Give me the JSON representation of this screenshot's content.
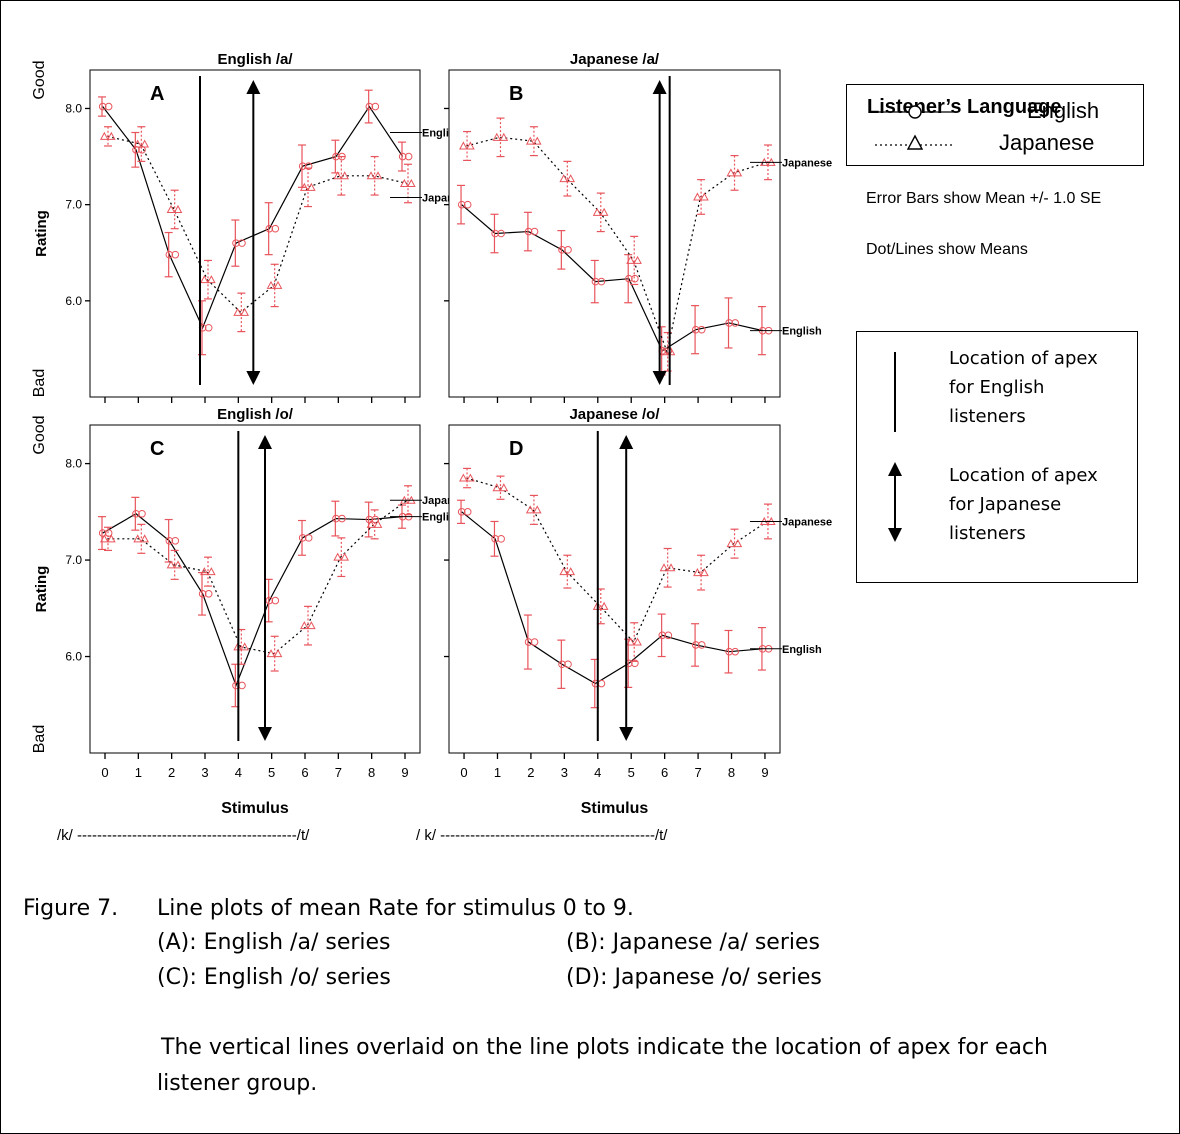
{
  "chart_data": [
    {
      "panel_letter": "A",
      "title": "English /a/",
      "type": "line",
      "x": [
        0,
        1,
        2,
        3,
        4,
        5,
        6,
        7,
        8,
        9
      ],
      "ylabel": "Rating",
      "ylim_top": "Good",
      "ylim_bottom": "Bad",
      "y_ticks": [
        "8.0",
        "7.0",
        "6.0"
      ],
      "y_tick_values": [
        8.0,
        7.0,
        6.0
      ],
      "ylim": [
        5.0,
        8.4
      ],
      "series": [
        {
          "name": "English",
          "values": [
            8.02,
            7.57,
            6.48,
            5.72,
            6.6,
            6.75,
            7.4,
            7.5,
            8.02,
            7.5
          ],
          "se": [
            0.1,
            0.18,
            0.23,
            0.28,
            0.24,
            0.27,
            0.22,
            0.17,
            0.17,
            0.15
          ]
        },
        {
          "name": "Japanese",
          "values": [
            7.71,
            7.63,
            6.95,
            6.22,
            5.88,
            6.16,
            7.18,
            7.3,
            7.3,
            7.22
          ],
          "se": [
            0.1,
            0.18,
            0.2,
            0.2,
            0.2,
            0.22,
            0.2,
            0.2,
            0.2,
            0.2
          ]
        }
      ],
      "apex_english": 2.85,
      "apex_japanese": 4.45,
      "end_label_english": "English",
      "end_label_japanese": "Japanese",
      "show_x_labels": false
    },
    {
      "panel_letter": "B",
      "title": "Japanese /a/",
      "type": "line",
      "x": [
        0,
        1,
        2,
        3,
        4,
        5,
        6,
        7,
        8,
        9
      ],
      "ylabel": "",
      "ylim": [
        5.0,
        8.4
      ],
      "series": [
        {
          "name": "English",
          "values": [
            7.0,
            6.7,
            6.72,
            6.53,
            6.2,
            6.23,
            5.48,
            5.7,
            5.77,
            5.69
          ],
          "se": [
            0.2,
            0.2,
            0.2,
            0.2,
            0.22,
            0.25,
            0.25,
            0.25,
            0.26,
            0.25
          ]
        },
        {
          "name": "Japanese",
          "values": [
            7.61,
            7.7,
            7.66,
            7.27,
            6.92,
            6.42,
            5.47,
            7.08,
            7.33,
            7.44
          ],
          "se": [
            0.15,
            0.2,
            0.15,
            0.18,
            0.2,
            0.25,
            0.2,
            0.18,
            0.18,
            0.18
          ]
        }
      ],
      "apex_english": 6.15,
      "apex_japanese": 5.85,
      "end_label_english": "English",
      "end_label_japanese": "Japanese",
      "show_x_labels": false
    },
    {
      "panel_letter": "C",
      "title": "English /o/",
      "type": "line",
      "x": [
        0,
        1,
        2,
        3,
        4,
        5,
        6,
        7,
        8,
        9
      ],
      "x_ticks": [
        "0",
        "1",
        "2",
        "3",
        "4",
        "5",
        "6",
        "7",
        "8",
        "9"
      ],
      "xlabel": "Stimulus",
      "ylabel": "Rating",
      "ylim_top": "Good",
      "ylim_bottom": "Bad",
      "y_ticks": [
        "8.0",
        "7.0",
        "6.0"
      ],
      "y_tick_values": [
        8.0,
        7.0,
        6.0
      ],
      "ylim": [
        5.0,
        8.4
      ],
      "series": [
        {
          "name": "English",
          "values": [
            7.28,
            7.48,
            7.2,
            6.65,
            5.7,
            6.58,
            7.23,
            7.43,
            7.42,
            7.45
          ],
          "se": [
            0.17,
            0.17,
            0.22,
            0.22,
            0.22,
            0.22,
            0.18,
            0.18,
            0.18,
            0.12
          ]
        },
        {
          "name": "Japanese",
          "values": [
            7.22,
            7.22,
            6.95,
            6.88,
            6.1,
            6.03,
            6.32,
            7.03,
            7.37,
            7.62
          ],
          "se": [
            0.12,
            0.15,
            0.15,
            0.15,
            0.18,
            0.18,
            0.2,
            0.2,
            0.15,
            0.15
          ]
        }
      ],
      "apex_english": 4.0,
      "apex_japanese": 4.8,
      "end_label_english": "English",
      "end_label_japanese": "Japanese",
      "show_x_labels": true,
      "x_range_label": "/k/ --------------------------------------------/t/"
    },
    {
      "panel_letter": "D",
      "title": "Japanese /o/",
      "type": "line",
      "x": [
        0,
        1,
        2,
        3,
        4,
        5,
        6,
        7,
        8,
        9
      ],
      "x_ticks": [
        "0",
        "1",
        "2",
        "3",
        "4",
        "5",
        "6",
        "7",
        "8",
        "9"
      ],
      "xlabel": "Stimulus",
      "ylabel": "",
      "ylim": [
        5.0,
        8.4
      ],
      "series": [
        {
          "name": "English",
          "values": [
            7.5,
            7.22,
            6.15,
            5.92,
            5.72,
            5.93,
            6.22,
            6.12,
            6.05,
            6.08
          ],
          "se": [
            0.12,
            0.18,
            0.28,
            0.25,
            0.25,
            0.25,
            0.22,
            0.22,
            0.22,
            0.22
          ]
        },
        {
          "name": "Japanese",
          "values": [
            7.85,
            7.75,
            7.52,
            6.88,
            6.52,
            6.15,
            6.92,
            6.87,
            7.17,
            7.4
          ],
          "se": [
            0.1,
            0.12,
            0.15,
            0.17,
            0.18,
            0.2,
            0.2,
            0.18,
            0.15,
            0.18
          ]
        }
      ],
      "apex_english": 4.0,
      "apex_japanese": 4.85,
      "end_label_english": "English",
      "end_label_japanese": "Japanese",
      "show_x_labels": true,
      "x_range_label": "/ k/ -------------------------------------------/t/"
    }
  ],
  "legend": {
    "title": "Listener’s Language",
    "english": "English",
    "japanese": "Japanese"
  },
  "notes": {
    "error_bars": "Error Bars show Mean +/- 1.0 SE",
    "dots": "Dot/Lines show Means"
  },
  "apex_legend": {
    "english": "Location of apex for English listeners",
    "japanese": "Location of apex for Japanese listeners"
  },
  "caption": {
    "label": "Figure 7.",
    "text": "Line plots of mean Rate for stimulus 0 to 9.",
    "a": "(A): English /a/ series",
    "b": "(B): Japanese /a/ series",
    "c": "(C): English /o/ series",
    "d": "(D): Japanese /o/ series",
    "note": "The vertical lines overlaid on the line plots indicate the location of apex for each listener group."
  },
  "colors": {
    "marker": "#e8545b",
    "errorbar": "#e8545b",
    "line": "#000000"
  }
}
